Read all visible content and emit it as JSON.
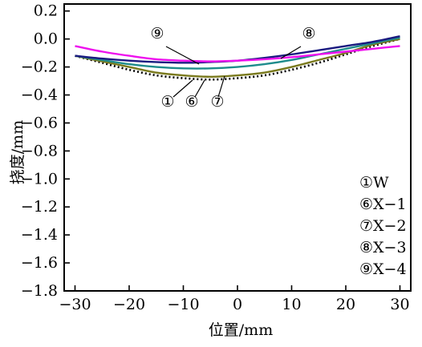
{
  "chart_data": {
    "type": "line",
    "xlabel": "位置/mm",
    "ylabel": "挠度/mm",
    "xlim": [
      -32,
      32
    ],
    "ylim": [
      -1.8,
      0.25
    ],
    "x_ticks": [
      -30,
      -20,
      -10,
      0,
      10,
      20,
      30
    ],
    "y_ticks": [
      0.2,
      0.0,
      -0.2,
      -0.4,
      -0.6,
      -0.8,
      -1.0,
      -1.2,
      -1.4,
      -1.6,
      -1.8
    ],
    "x_tick_labels": [
      "−30",
      "−20",
      "−10",
      "0",
      "10",
      "20",
      "30"
    ],
    "y_tick_labels": [
      "0.2",
      "0.0",
      "−0.2",
      "−0.4",
      "−0.6",
      "−0.8",
      "−1.0",
      "−1.2",
      "−1.4",
      "−1.6",
      "−1.8"
    ],
    "x": [
      -30,
      -25,
      -20,
      -15,
      -10,
      -5,
      0,
      5,
      10,
      15,
      20,
      25,
      30
    ],
    "series": [
      {
        "name": "W",
        "marker": "①",
        "color": "#000000",
        "dash": true,
        "values": [
          -0.12,
          -0.17,
          -0.22,
          -0.26,
          -0.28,
          -0.29,
          -0.28,
          -0.26,
          -0.22,
          -0.17,
          -0.11,
          -0.05,
          0.0
        ]
      },
      {
        "name": "X-1",
        "marker": "⑥",
        "color": "#7a7a1e",
        "dash": false,
        "values": [
          -0.12,
          -0.16,
          -0.2,
          -0.24,
          -0.26,
          -0.27,
          -0.26,
          -0.24,
          -0.2,
          -0.15,
          -0.1,
          -0.04,
          0.0
        ]
      },
      {
        "name": "X-2",
        "marker": "⑦",
        "color": "#1e8c8c",
        "dash": false,
        "values": [
          -0.12,
          -0.15,
          -0.18,
          -0.2,
          -0.21,
          -0.21,
          -0.2,
          -0.18,
          -0.15,
          -0.11,
          -0.07,
          -0.03,
          0.01
        ]
      },
      {
        "name": "X-3",
        "marker": "⑧",
        "color": "#1a1a80",
        "dash": false,
        "values": [
          -0.12,
          -0.14,
          -0.155,
          -0.165,
          -0.17,
          -0.165,
          -0.155,
          -0.135,
          -0.11,
          -0.08,
          -0.05,
          -0.02,
          0.02
        ]
      },
      {
        "name": "X-4",
        "marker": "⑨",
        "color": "#ee10ee",
        "dash": false,
        "values": [
          -0.05,
          -0.09,
          -0.12,
          -0.145,
          -0.155,
          -0.16,
          -0.155,
          -0.145,
          -0.13,
          -0.11,
          -0.09,
          -0.07,
          -0.05
        ]
      }
    ],
    "legend": {
      "placement": "bottom-right",
      "entries": [
        "①W",
        "⑥X−1",
        "⑦X−2",
        "⑧X−3",
        "⑨X−4"
      ]
    },
    "annotations": [
      "⑨",
      "⑧",
      "①",
      "⑥",
      "⑦"
    ],
    "grid": false
  }
}
